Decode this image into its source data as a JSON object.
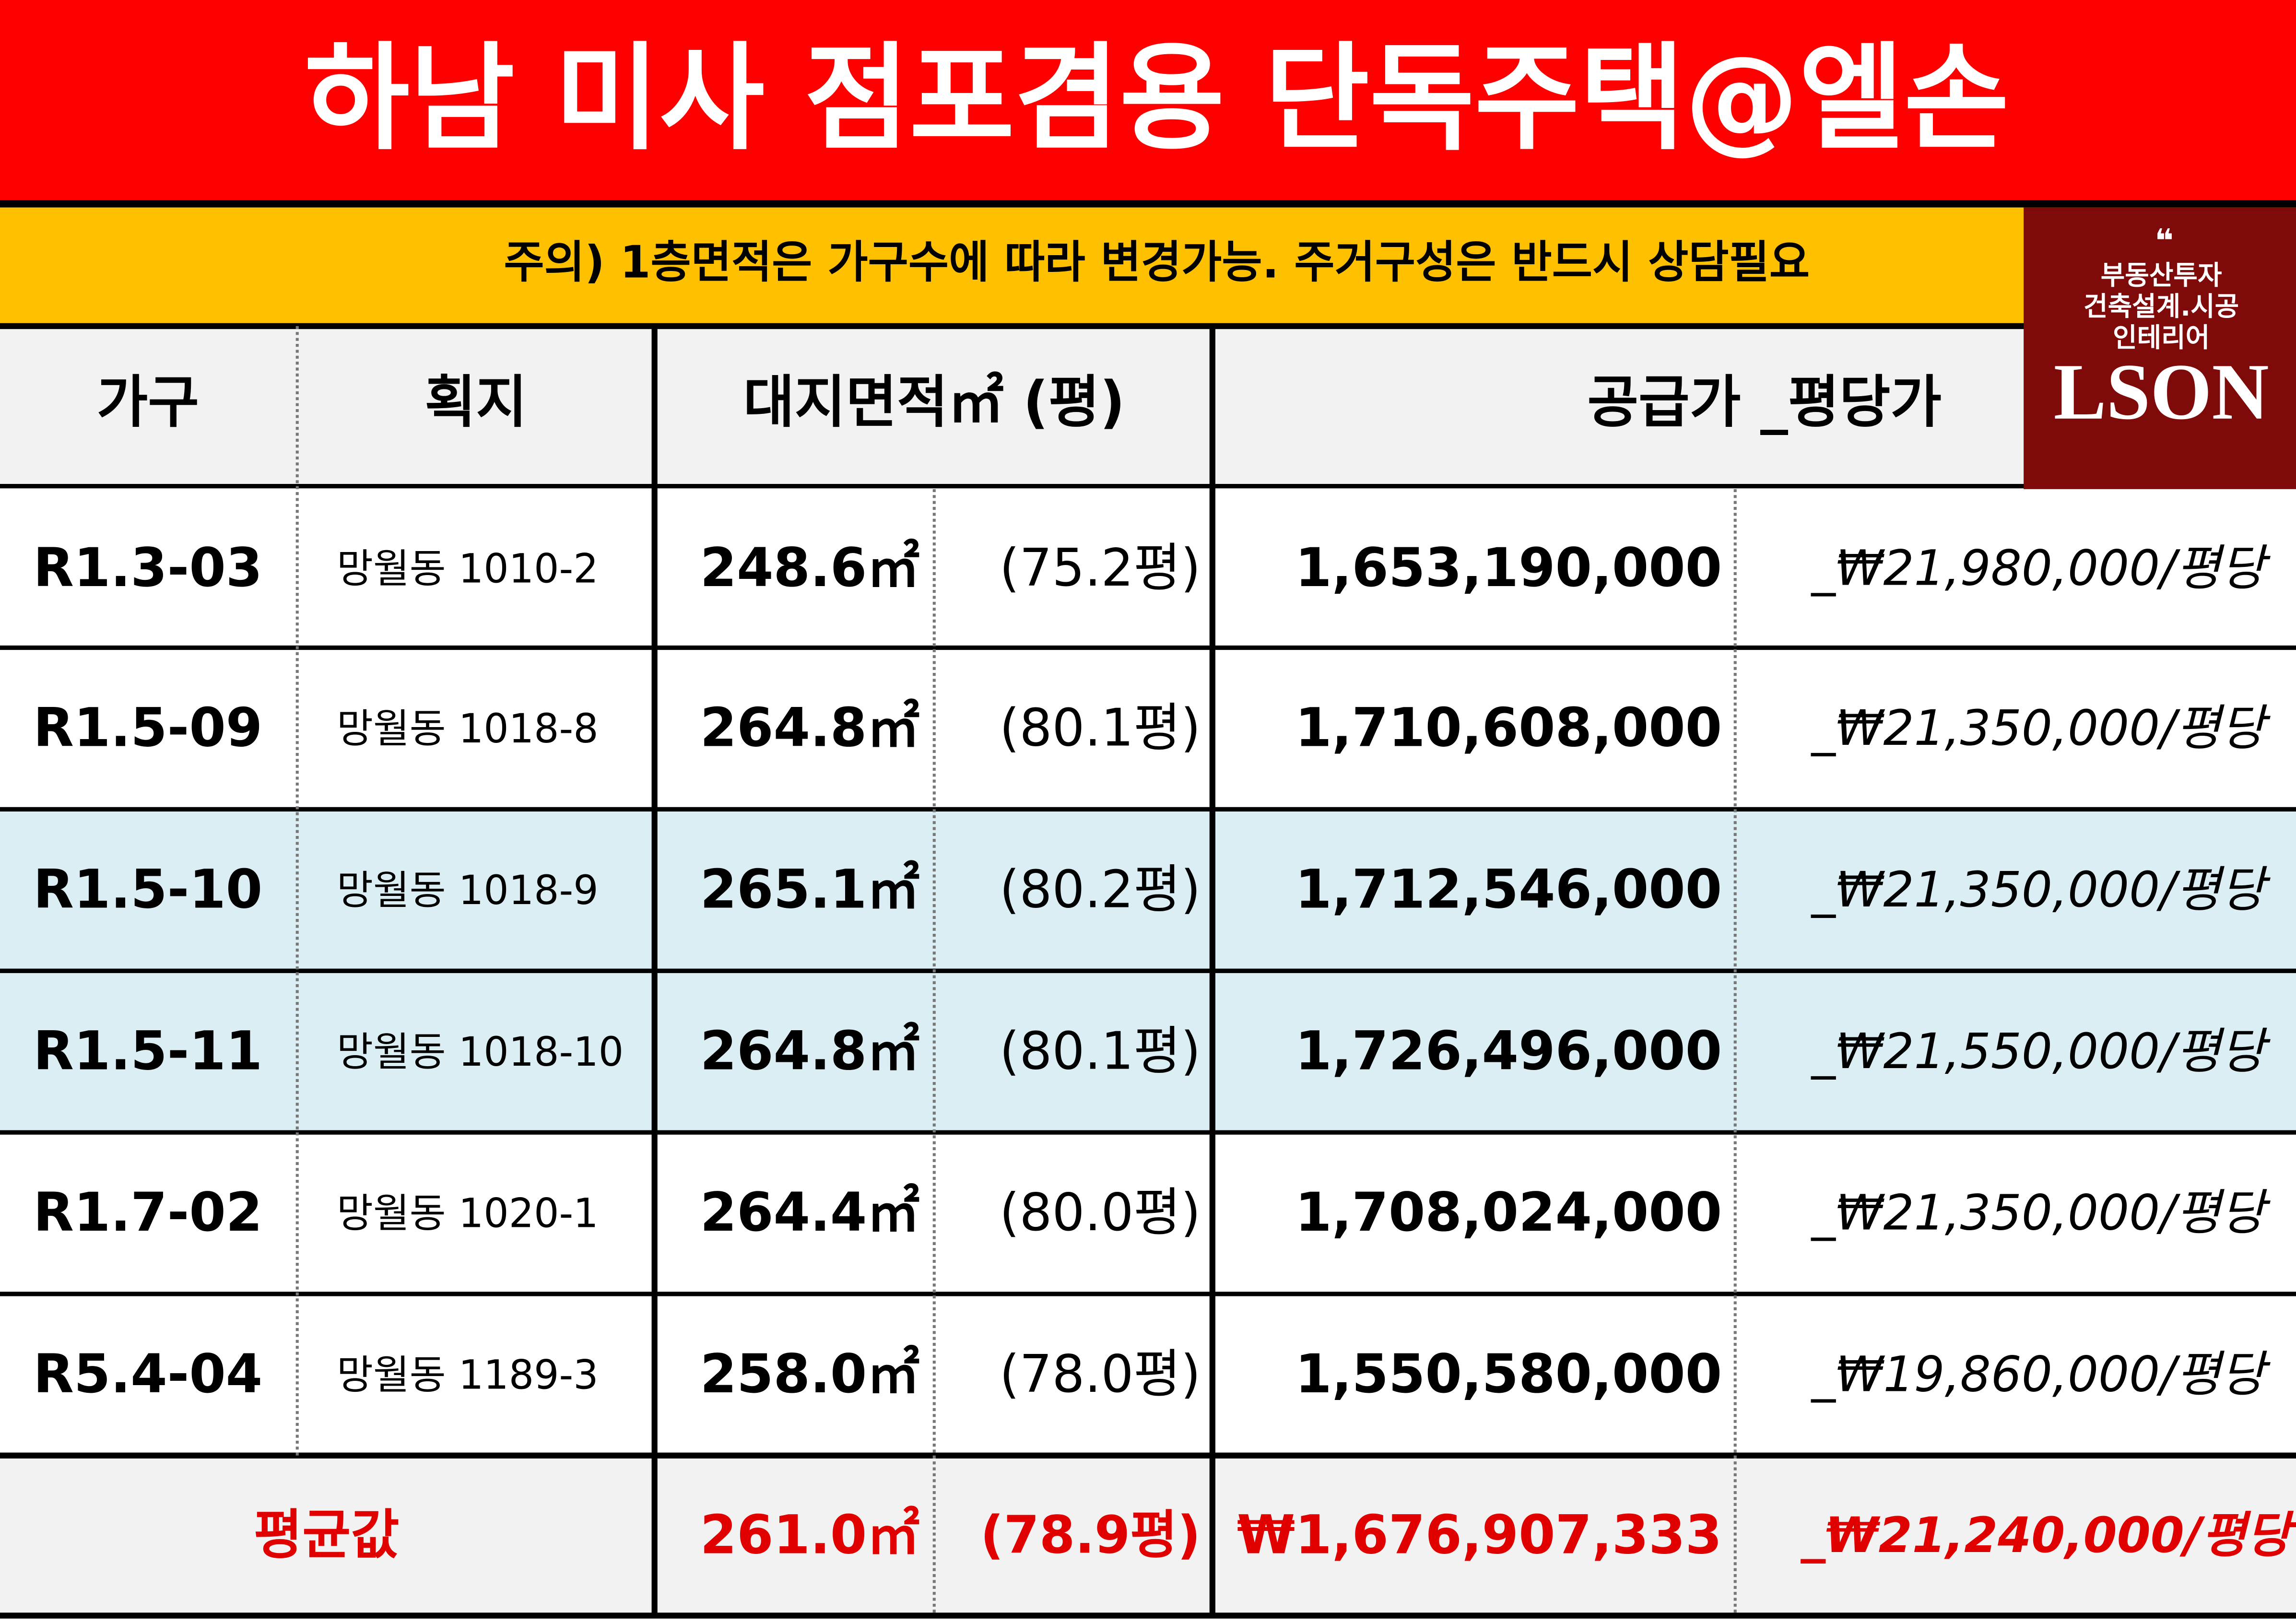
{
  "header": {
    "title": "하남 미사 점포겸용 단독주택@엘손",
    "notice": "주의) 1층면적은 가구수에 따라 변경가능. 주거구성은 반드시 상담필요"
  },
  "logo": {
    "quote": "❝",
    "lines": [
      "부동산투자",
      "건축설계.시공",
      "인테리어"
    ],
    "brand": "LSON"
  },
  "table": {
    "columns": [
      "가구",
      "획지",
      "대지면적㎡ (평)",
      "공급가 _평당가"
    ],
    "rows": [
      [
        "R1.3-03",
        "망월동 1010-2",
        "248.6㎡",
        "(75.2평)",
        "1,653,190,000",
        "_₩21,980,000/평당"
      ],
      [
        "R1.5-09",
        "망월동 1018-8",
        "264.8㎡",
        "(80.1평)",
        "1,710,608,000",
        "_₩21,350,000/평당"
      ],
      [
        "R1.5-10",
        "망월동 1018-9",
        "265.1㎡",
        "(80.2평)",
        "1,712,546,000",
        "_₩21,350,000/평당"
      ],
      [
        "R1.5-11",
        "망월동 1018-10",
        "264.8㎡",
        "(80.1평)",
        "1,726,496,000",
        "_₩21,550,000/평당"
      ],
      [
        "R1.7-02",
        "망월동 1020-1",
        "264.4㎡",
        "(80.0평)",
        "1,708,024,000",
        "_₩21,350,000/평당"
      ],
      [
        "R5.4-04",
        "망월동 1189-3",
        "258.0㎡",
        "(78.0평)",
        "1,550,580,000",
        "_₩19,860,000/평당"
      ]
    ],
    "average": [
      "평균값",
      "261.0㎡",
      "(78.9평)",
      "₩1,676,907,333",
      "_₩21,240,000/평당"
    ]
  }
}
